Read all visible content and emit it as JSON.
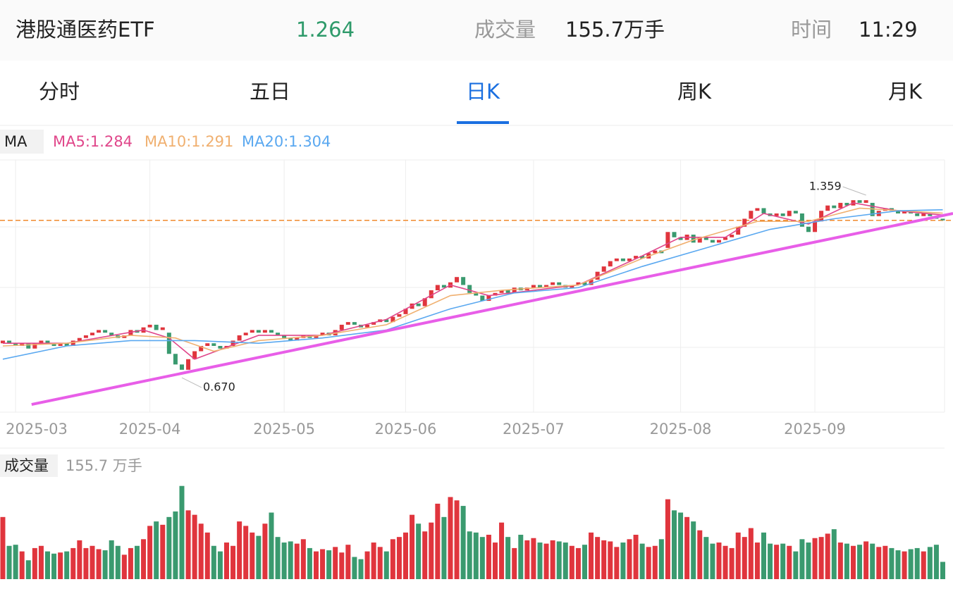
{
  "header": {
    "name": "港股通医药ETF",
    "price": 1.264,
    "volume_label": "成交量",
    "volume": "155.7万手",
    "time_label": "时间",
    "time": "11:29"
  },
  "tabs": [
    "分时",
    "五日",
    "日K",
    "周K",
    "月K"
  ],
  "active_tab": 2,
  "chart_data": {
    "type": "candlestick",
    "indicator": "MA",
    "xlim": [
      -0.44,
      148.6
    ],
    "ylim": [
      0.54,
      1.492
    ],
    "xticks": [
      {
        "value": 2,
        "label": "2025-03"
      },
      {
        "value": 23,
        "label": "2025-04"
      },
      {
        "value": 44,
        "label": "2025-05"
      },
      {
        "value": 63,
        "label": "2025-06"
      },
      {
        "value": 83,
        "label": "2025-07"
      },
      {
        "value": 106,
        "label": "2025-08"
      },
      {
        "value": 127,
        "label": "2025-09"
      }
    ],
    "up_color": "#e0353d",
    "down_color": "#3a9a6f",
    "open": [
      0.8,
      0.81,
      0.8,
      0.79,
      0.8,
      0.78,
      0.8,
      0.81,
      0.8,
      0.79,
      0.8,
      0.79,
      0.81,
      0.82,
      0.83,
      0.84,
      0.85,
      0.84,
      0.83,
      0.82,
      0.83,
      0.85,
      0.84,
      0.86,
      0.87,
      0.85,
      0.84,
      0.76,
      0.72,
      0.7,
      0.74,
      0.77,
      0.79,
      0.8,
      0.79,
      0.78,
      0.79,
      0.81,
      0.83,
      0.84,
      0.85,
      0.84,
      0.85,
      0.84,
      0.83,
      0.82,
      0.81,
      0.82,
      0.83,
      0.82,
      0.83,
      0.84,
      0.83,
      0.85,
      0.87,
      0.88,
      0.87,
      0.86,
      0.87,
      0.88,
      0.89,
      0.88,
      0.9,
      0.91,
      0.93,
      0.95,
      0.94,
      0.97,
      1.0,
      1.02,
      1.01,
      1.03,
      1.05,
      1.02,
      0.99,
      0.98,
      0.96,
      0.98,
      0.99,
      1.0,
      0.99,
      1.01,
      1.0,
      1.01,
      1.02,
      1.01,
      1.02,
      1.03,
      1.02,
      1.01,
      1.02,
      1.03,
      1.02,
      1.04,
      1.07,
      1.09,
      1.11,
      1.12,
      1.11,
      1.12,
      1.13,
      1.12,
      1.14,
      1.15,
      1.16,
      1.22,
      1.2,
      1.19,
      1.21,
      1.18,
      1.2,
      1.19,
      1.18,
      1.19,
      1.2,
      1.21,
      1.24,
      1.27,
      1.3,
      1.31,
      1.29,
      1.28,
      1.29,
      1.28,
      1.3,
      1.29,
      1.24,
      1.22,
      1.26,
      1.3,
      1.32,
      1.31,
      1.33,
      1.32,
      1.34,
      1.33,
      1.33,
      1.28,
      1.3,
      1.31,
      1.3,
      1.29,
      1.3,
      1.29,
      1.28,
      1.29,
      1.28,
      1.27
    ],
    "close": [
      0.81,
      0.8,
      0.79,
      0.8,
      0.78,
      0.8,
      0.81,
      0.8,
      0.79,
      0.8,
      0.79,
      0.81,
      0.82,
      0.83,
      0.84,
      0.85,
      0.84,
      0.83,
      0.82,
      0.83,
      0.85,
      0.84,
      0.86,
      0.87,
      0.85,
      0.86,
      0.76,
      0.72,
      0.7,
      0.74,
      0.77,
      0.79,
      0.8,
      0.79,
      0.78,
      0.79,
      0.81,
      0.83,
      0.84,
      0.85,
      0.84,
      0.85,
      0.84,
      0.83,
      0.82,
      0.81,
      0.82,
      0.83,
      0.82,
      0.83,
      0.84,
      0.83,
      0.85,
      0.87,
      0.88,
      0.87,
      0.86,
      0.87,
      0.88,
      0.89,
      0.88,
      0.9,
      0.91,
      0.93,
      0.95,
      0.94,
      0.97,
      1.0,
      1.02,
      1.01,
      1.03,
      1.05,
      1.02,
      0.99,
      0.98,
      0.96,
      0.98,
      0.99,
      1.0,
      0.99,
      1.01,
      1.0,
      1.01,
      1.02,
      1.01,
      1.02,
      1.03,
      1.02,
      1.01,
      1.02,
      1.03,
      1.02,
      1.04,
      1.07,
      1.09,
      1.11,
      1.12,
      1.11,
      1.12,
      1.13,
      1.12,
      1.14,
      1.15,
      1.14,
      1.22,
      1.2,
      1.19,
      1.21,
      1.18,
      1.2,
      1.19,
      1.18,
      1.19,
      1.2,
      1.21,
      1.24,
      1.27,
      1.3,
      1.31,
      1.29,
      1.28,
      1.29,
      1.28,
      1.3,
      1.29,
      1.24,
      1.22,
      1.26,
      1.3,
      1.32,
      1.31,
      1.33,
      1.32,
      1.34,
      1.33,
      1.34,
      1.28,
      1.3,
      1.31,
      1.3,
      1.29,
      1.3,
      1.29,
      1.28,
      1.29,
      1.28,
      1.27,
      1.264
    ],
    "ma": [
      {
        "label": "MA5:1.284",
        "color": "#e0468a",
        "x": [
          0,
          10,
          22,
          26,
          30,
          40,
          50,
          60,
          70,
          76,
          90,
          100,
          106,
          113,
          119,
          126,
          133,
          140,
          147
        ],
        "values": [
          0.8,
          0.8,
          0.85,
          0.82,
          0.74,
          0.83,
          0.83,
          0.89,
          1.02,
          0.98,
          1.02,
          1.13,
          1.2,
          1.2,
          1.29,
          1.25,
          1.33,
          1.3,
          1.284
        ]
      },
      {
        "label": "MA10:1.291",
        "color": "#f0b070",
        "x": [
          0,
          10,
          20,
          27,
          33,
          40,
          50,
          60,
          70,
          78,
          90,
          100,
          108,
          118,
          126,
          134,
          147
        ],
        "values": [
          0.79,
          0.8,
          0.83,
          0.82,
          0.77,
          0.81,
          0.83,
          0.87,
          0.98,
          1.0,
          1.02,
          1.12,
          1.19,
          1.26,
          1.26,
          1.31,
          1.291
        ]
      },
      {
        "label": "MA20:1.304",
        "color": "#5aa8f0",
        "x": [
          0,
          10,
          20,
          30,
          40,
          50,
          60,
          70,
          80,
          90,
          100,
          110,
          120,
          130,
          140,
          147
        ],
        "values": [
          0.74,
          0.79,
          0.81,
          0.81,
          0.8,
          0.82,
          0.85,
          0.93,
          0.99,
          1.01,
          1.09,
          1.16,
          1.23,
          1.27,
          1.3,
          1.304
        ]
      }
    ],
    "annotations": [
      {
        "x": 135,
        "value": 1.359,
        "label": "1.359"
      },
      {
        "x": 28,
        "value": 0.67,
        "label": "0.670"
      }
    ],
    "price_line_color": "#f08a2c",
    "trendline": {
      "color": "#e85ee8",
      "x": [
        4.5,
        148.6
      ],
      "values": [
        0.569,
        1.29
      ]
    },
    "volume": {
      "title": "成交量",
      "label": "155.7 万手",
      "ylim": [
        0,
        870
      ],
      "values": [
        560,
        300,
        310,
        250,
        170,
        280,
        300,
        250,
        230,
        240,
        250,
        280,
        350,
        280,
        300,
        270,
        260,
        350,
        300,
        220,
        280,
        300,
        360,
        480,
        520,
        490,
        560,
        610,
        840,
        620,
        580,
        500,
        420,
        300,
        250,
        330,
        300,
        520,
        480,
        420,
        390,
        500,
        600,
        380,
        330,
        340,
        320,
        360,
        280,
        250,
        270,
        260,
        290,
        240,
        310,
        200,
        180,
        250,
        330,
        290,
        250,
        360,
        380,
        420,
        580,
        500,
        430,
        510,
        680,
        560,
        740,
        710,
        660,
        430,
        420,
        380,
        400,
        330,
        510,
        380,
        280,
        400,
        350,
        370,
        330,
        320,
        350,
        340,
        330,
        300,
        280,
        310,
        420,
        380,
        350,
        340,
        290,
        330,
        360,
        400,
        320,
        290,
        300,
        360,
        720,
        620,
        600,
        560,
        520,
        440,
        380,
        320,
        330,
        300,
        280,
        420,
        380,
        460,
        330,
        420,
        320,
        310,
        320,
        300,
        250,
        360,
        330,
        370,
        380,
        410,
        450,
        330,
        320,
        300,
        310,
        340,
        320,
        290,
        300,
        280,
        260,
        250,
        270,
        280,
        250,
        290,
        310,
        155.7
      ]
    }
  }
}
